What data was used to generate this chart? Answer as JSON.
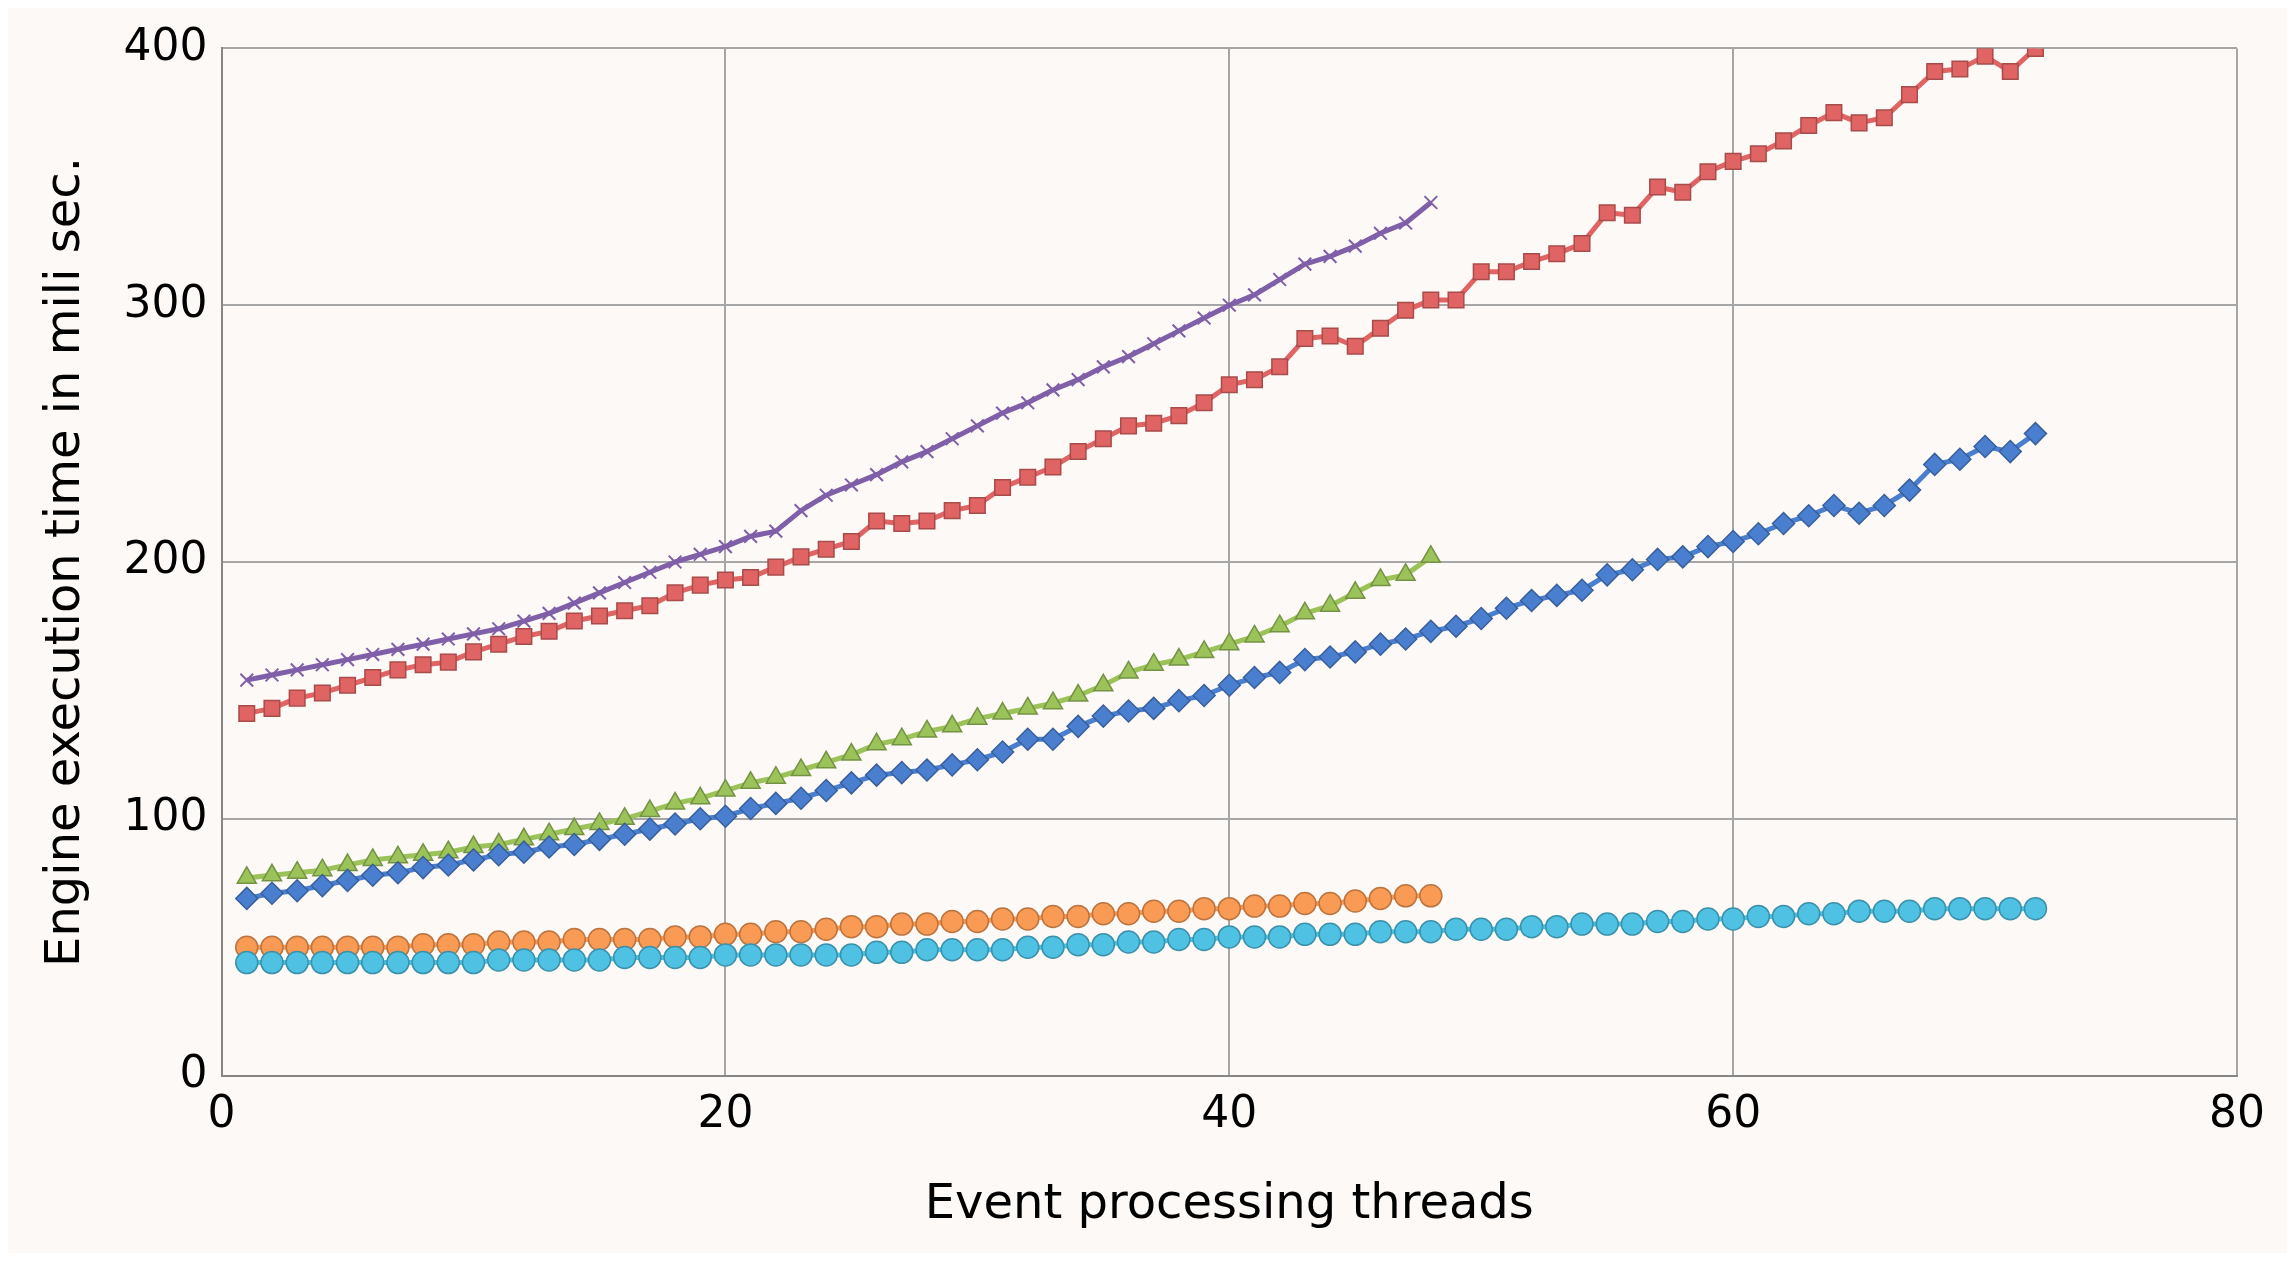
{
  "chart_data": {
    "type": "line",
    "xlabel": "Event processing threads",
    "ylabel": "Engine execution time in mili sec.",
    "xlim": [
      0,
      80
    ],
    "xticks": [
      0,
      20,
      40,
      60,
      80
    ],
    "ylim": [
      0,
      400
    ],
    "yticks": [
      0,
      100,
      200,
      300,
      400
    ],
    "grid": true,
    "legend": false,
    "x": [
      1,
      2,
      3,
      4,
      5,
      6,
      7,
      8,
      9,
      10,
      11,
      12,
      13,
      14,
      15,
      16,
      17,
      18,
      19,
      20,
      21,
      22,
      23,
      24,
      25,
      26,
      27,
      28,
      29,
      30,
      31,
      32,
      33,
      34,
      35,
      36,
      37,
      38,
      39,
      40,
      41,
      42,
      43,
      44,
      45,
      46,
      47,
      48,
      49,
      50,
      51,
      52,
      53,
      54,
      55,
      56,
      57,
      58,
      59,
      60,
      61,
      62,
      63,
      64,
      65,
      66,
      67,
      68,
      69,
      70,
      71,
      72
    ],
    "series": [
      {
        "color": "#4a7fcf",
        "marker": "diamond",
        "values": [
          69,
          71,
          72,
          74,
          76,
          78,
          79,
          81,
          82,
          84,
          86,
          87,
          89,
          90,
          92,
          94,
          96,
          98,
          100,
          101,
          104,
          106,
          108,
          111,
          114,
          117,
          118,
          119,
          121,
          123,
          126,
          131,
          131,
          136,
          140,
          142,
          143,
          146,
          148,
          152,
          155,
          157,
          162,
          163,
          165,
          168,
          170,
          173,
          175,
          178,
          182,
          185,
          187,
          189,
          195,
          197,
          201,
          202,
          206,
          208,
          211,
          215,
          218,
          222,
          219,
          222,
          228,
          238,
          240,
          245,
          243,
          250
        ]
      },
      {
        "color": "#e06464",
        "marker": "square",
        "values": [
          141,
          143,
          147,
          149,
          152,
          155,
          158,
          160,
          161,
          165,
          168,
          171,
          173,
          177,
          179,
          181,
          183,
          188,
          191,
          193,
          194,
          198,
          202,
          205,
          208,
          216,
          215,
          216,
          220,
          222,
          229,
          233,
          237,
          243,
          248,
          253,
          254,
          257,
          262,
          269,
          271,
          276,
          287,
          288,
          284,
          291,
          298,
          302,
          302,
          313,
          313,
          317,
          320,
          324,
          336,
          335,
          346,
          344,
          352,
          356,
          359,
          364,
          370,
          375,
          371,
          373,
          382,
          391,
          392,
          397,
          391,
          400
        ]
      },
      {
        "color": "#9bc35a",
        "marker": "triangle",
        "x": [
          1,
          2,
          3,
          4,
          5,
          6,
          7,
          8,
          9,
          10,
          11,
          12,
          13,
          14,
          15,
          16,
          17,
          18,
          19,
          20,
          21,
          22,
          23,
          24,
          25,
          26,
          27,
          28,
          29,
          30,
          31,
          32,
          33,
          34,
          35,
          36,
          37,
          38,
          39,
          40,
          41,
          42,
          43,
          44,
          45,
          46,
          47,
          48
        ],
        "values": [
          77,
          78,
          79,
          80,
          82,
          84,
          85,
          86,
          87,
          89,
          90,
          92,
          94,
          96,
          98,
          100,
          103,
          106,
          108,
          111,
          114,
          116,
          119,
          122,
          125,
          129,
          131,
          134,
          136,
          139,
          141,
          143,
          145,
          148,
          152,
          157,
          160,
          162,
          165,
          168,
          171,
          175,
          180,
          183,
          188,
          193,
          195,
          202
        ]
      },
      {
        "color": "#7f5fa8",
        "marker": "cross",
        "x": [
          1,
          2,
          3,
          4,
          5,
          6,
          7,
          8,
          9,
          10,
          11,
          12,
          13,
          14,
          15,
          16,
          17,
          18,
          19,
          20,
          21,
          22,
          23,
          24,
          25,
          26,
          27,
          28,
          29,
          30,
          31,
          32,
          33,
          34,
          35,
          36,
          37,
          38,
          39,
          40,
          41,
          42,
          43,
          44,
          45,
          46,
          47,
          48
        ],
        "values": [
          154,
          156,
          158,
          160,
          162,
          164,
          166,
          168,
          170,
          172,
          174,
          177,
          180,
          184,
          188,
          192,
          196,
          200,
          203,
          206,
          210,
          212,
          220,
          226,
          230,
          234,
          239,
          243,
          248,
          253,
          258,
          262,
          267,
          271,
          276,
          280,
          285,
          290,
          295,
          300,
          304,
          310,
          316,
          319,
          323,
          328,
          332,
          340
        ]
      },
      {
        "color": "#4fc1e3",
        "marker": "circle",
        "values": [
          44,
          44,
          44,
          44,
          44,
          44,
          44,
          44,
          44,
          44,
          45,
          45,
          45,
          45,
          45,
          46,
          46,
          46,
          46,
          47,
          47,
          47,
          47,
          47,
          47,
          48,
          48,
          49,
          49,
          49,
          49,
          50,
          50,
          51,
          51,
          52,
          52,
          53,
          53,
          54,
          54,
          54,
          55,
          55,
          55,
          56,
          56,
          56,
          57,
          57,
          57,
          58,
          58,
          59,
          59,
          59,
          60,
          60,
          61,
          61,
          62,
          62,
          63,
          63,
          64,
          64,
          64,
          65,
          65,
          65,
          65,
          65
        ]
      },
      {
        "color": "#f99a55",
        "marker": "circle",
        "x": [
          1,
          2,
          3,
          4,
          5,
          6,
          7,
          8,
          9,
          10,
          11,
          12,
          13,
          14,
          15,
          16,
          17,
          18,
          19,
          20,
          21,
          22,
          23,
          24,
          25,
          26,
          27,
          28,
          29,
          30,
          31,
          32,
          33,
          34,
          35,
          36,
          37,
          38,
          39,
          40,
          41,
          42,
          43,
          44,
          45,
          46,
          47,
          48
        ],
        "values": [
          50,
          50,
          50,
          50,
          50,
          50,
          50,
          51,
          51,
          51,
          52,
          52,
          52,
          53,
          53,
          53,
          53,
          54,
          54,
          55,
          55,
          56,
          56,
          57,
          58,
          58,
          59,
          59,
          60,
          60,
          61,
          61,
          62,
          62,
          63,
          63,
          64,
          64,
          65,
          65,
          66,
          66,
          67,
          67,
          68,
          69,
          70,
          70
        ]
      }
    ]
  }
}
